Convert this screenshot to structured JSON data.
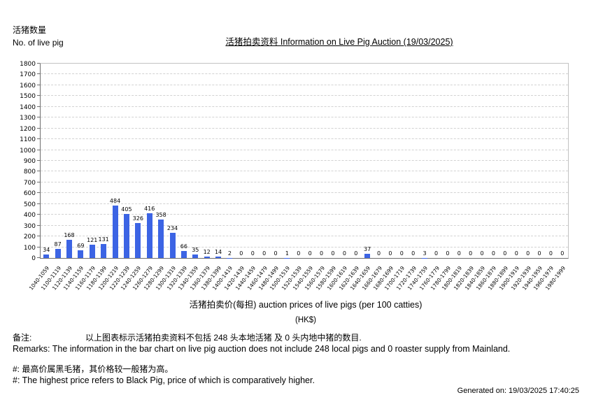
{
  "header": {
    "y_axis_label_zh": "活猪数量",
    "y_axis_label_en": "No. of live pig",
    "title": "活猪拍卖资料 Information on Live Pig Auction (19/03/2025)"
  },
  "axis": {
    "x_title": "活猪拍卖价(每担) auction prices of live pigs (per 100 catties)",
    "x_unit": "(HK$)"
  },
  "footer": {
    "remarks_label_zh": "备注:",
    "remarks_text_zh": "以上图表标示活猪拍卖资料不包括 248 头本地活猪 及 0 头内地中猪的数目.",
    "remarks_en": "Remarks: The information in the bar chart on live pig auction does not include 248 local pigs and 0 roaster supply from Mainland.",
    "note_zh": "#: 最高价属黑毛猪，其价格较一般猪为高。",
    "note_en": "#: The highest price refers to Black Pig, price of which is comparatively higher.",
    "generated": "Generated on: 19/03/2025 17:40:25"
  },
  "chart_data": {
    "type": "bar",
    "title": "活猪拍卖资料 Information on Live Pig Auction (19/03/2025)",
    "xlabel": "活猪拍卖价(每担) auction prices of live pigs (per 100 catties) (HK$)",
    "ylabel": "活猪数量 No. of live pig",
    "ylim": [
      0,
      1800
    ],
    "ytick_step": 100,
    "grid": true,
    "legend_position": "none",
    "bar_color": "#3c64e4",
    "categories": [
      "1040-1059",
      "1100-1119",
      "1120-1139",
      "1140-1159",
      "1160-1179",
      "1180-1199",
      "1200-1219",
      "1220-1239",
      "1240-1259",
      "1260-1279",
      "1280-1299",
      "1300-1319",
      "1320-1339",
      "1340-1359",
      "1360-1379",
      "1380-1399",
      "1400-1419",
      "1420-1439",
      "1440-1459",
      "1460-1479",
      "1480-1499",
      "1500-1519",
      "1520-1539",
      "1540-1559",
      "1560-1579",
      "1580-1599",
      "1600-1619",
      "1620-1639",
      "1640-1659",
      "1660-1679",
      "1680-1699",
      "1700-1719",
      "1720-1739",
      "1740-1759",
      "1760-1779",
      "1780-1799",
      "1800-1819",
      "1820-1839",
      "1840-1859",
      "1860-1879",
      "1880-1899",
      "1900-1919",
      "1920-1939",
      "1940-1959",
      "1960-1979",
      "1980-1999"
    ],
    "values": [
      34,
      87,
      168,
      69,
      121,
      131,
      484,
      405,
      326,
      416,
      358,
      234,
      66,
      35,
      12,
      14,
      2,
      0,
      0,
      0,
      0,
      1,
      0,
      0,
      0,
      0,
      0,
      0,
      37,
      0,
      0,
      0,
      0,
      3,
      0,
      0,
      0,
      0,
      0,
      0,
      0,
      0,
      0,
      0,
      0,
      0
    ]
  }
}
